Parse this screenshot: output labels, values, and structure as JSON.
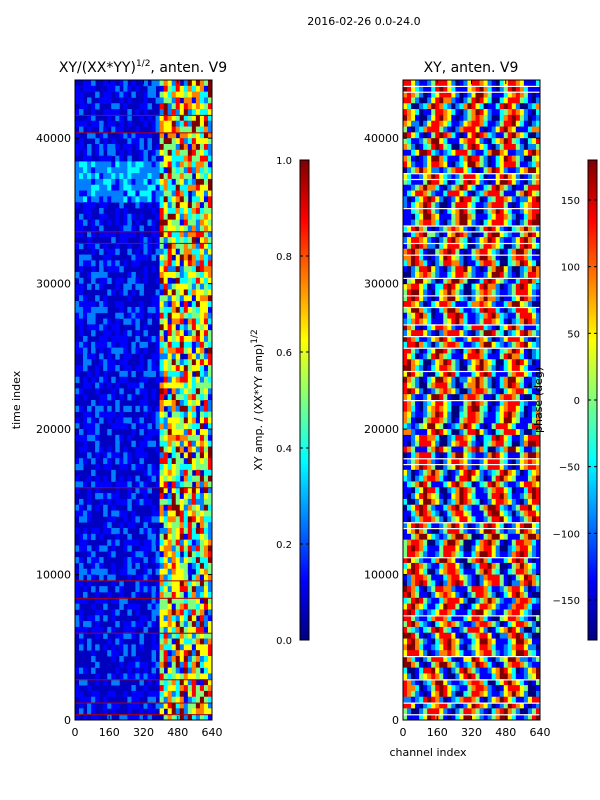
{
  "suptitle": "2016-02-26 0.0-24.0",
  "colors": {
    "jet": [
      "#00007f",
      "#0000ff",
      "#007fff",
      "#00ffff",
      "#7fff7f",
      "#ffff00",
      "#ff7f00",
      "#ff0000",
      "#7f0000"
    ]
  },
  "chart_data": [
    {
      "type": "heatmap",
      "title_main": "XY/(XX*YY)",
      "title_exp": "1/2",
      "title_rest": ", anten. V9",
      "xlabel": "",
      "ylabel": "time index",
      "xlim": [
        0,
        640
      ],
      "ylim": [
        0,
        44000
      ],
      "xticks": [
        "0",
        "160",
        "320",
        "480",
        "640"
      ],
      "xtick_values": [
        0,
        160,
        320,
        480,
        640
      ],
      "yticks": [
        "0",
        "10000",
        "20000",
        "30000",
        "40000"
      ],
      "ytick_values": [
        0,
        10000,
        20000,
        30000,
        40000
      ],
      "colorbar": {
        "label_main": "XY amp. / (XX*YY amp)",
        "label_exp": "1/2",
        "range": [
          0.0,
          1.0
        ],
        "ticks": [
          "0.0",
          "0.2",
          "0.4",
          "0.6",
          "0.8",
          "1.0"
        ],
        "tick_values": [
          0.0,
          0.2,
          0.4,
          0.6,
          0.8,
          1.0
        ]
      }
    },
    {
      "type": "heatmap",
      "title_main": "XY, anten. V9",
      "xlabel": "channel index",
      "ylabel": "",
      "xlim": [
        0,
        640
      ],
      "ylim": [
        0,
        44000
      ],
      "xticks": [
        "0",
        "160",
        "320",
        "480",
        "640"
      ],
      "xtick_values": [
        0,
        160,
        320,
        480,
        640
      ],
      "yticks": [
        "0",
        "10000",
        "20000",
        "30000",
        "40000"
      ],
      "ytick_values": [
        0,
        10000,
        20000,
        30000,
        40000
      ],
      "colorbar": {
        "label_main": "phase (deg)",
        "range": [
          -180,
          180
        ],
        "ticks": [
          "−150",
          "−100",
          "−50",
          "0",
          "50",
          "100",
          "150"
        ],
        "tick_values": [
          -150,
          -100,
          -50,
          0,
          50,
          100,
          150
        ]
      }
    }
  ]
}
